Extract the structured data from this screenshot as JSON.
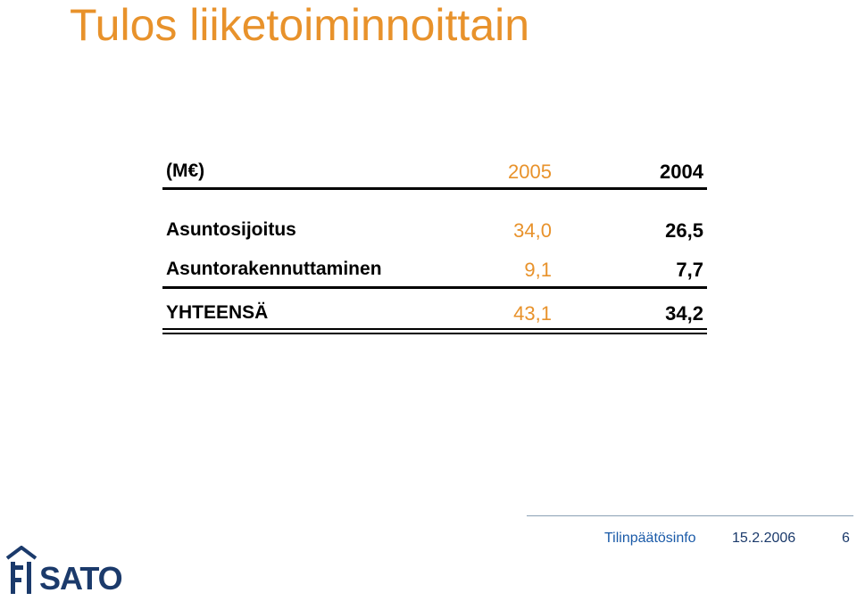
{
  "slide": {
    "title": "Tulos liiketoiminnoittain"
  },
  "table": {
    "header": {
      "unit": "(M€)",
      "col1": "2005",
      "col2": "2004"
    },
    "rows": [
      {
        "label": "Asuntosijoitus",
        "v2005": "34,0",
        "v2004": "26,5"
      },
      {
        "label": "Asuntorakennuttaminen",
        "v2005": "9,1",
        "v2004": "7,7"
      }
    ],
    "total": {
      "label": "YHTEENSÄ",
      "v2005": "43,1",
      "v2004": "34,2"
    }
  },
  "footer": {
    "info": "Tilinpäätösinfo",
    "date": "15.2.2006",
    "page": "6"
  },
  "logo": {
    "text": "SATO",
    "icon": "house-icon"
  },
  "colors": {
    "accent": "#e8922b",
    "brand": "#1b3a6b",
    "footer_link": "#1a5aa8"
  }
}
